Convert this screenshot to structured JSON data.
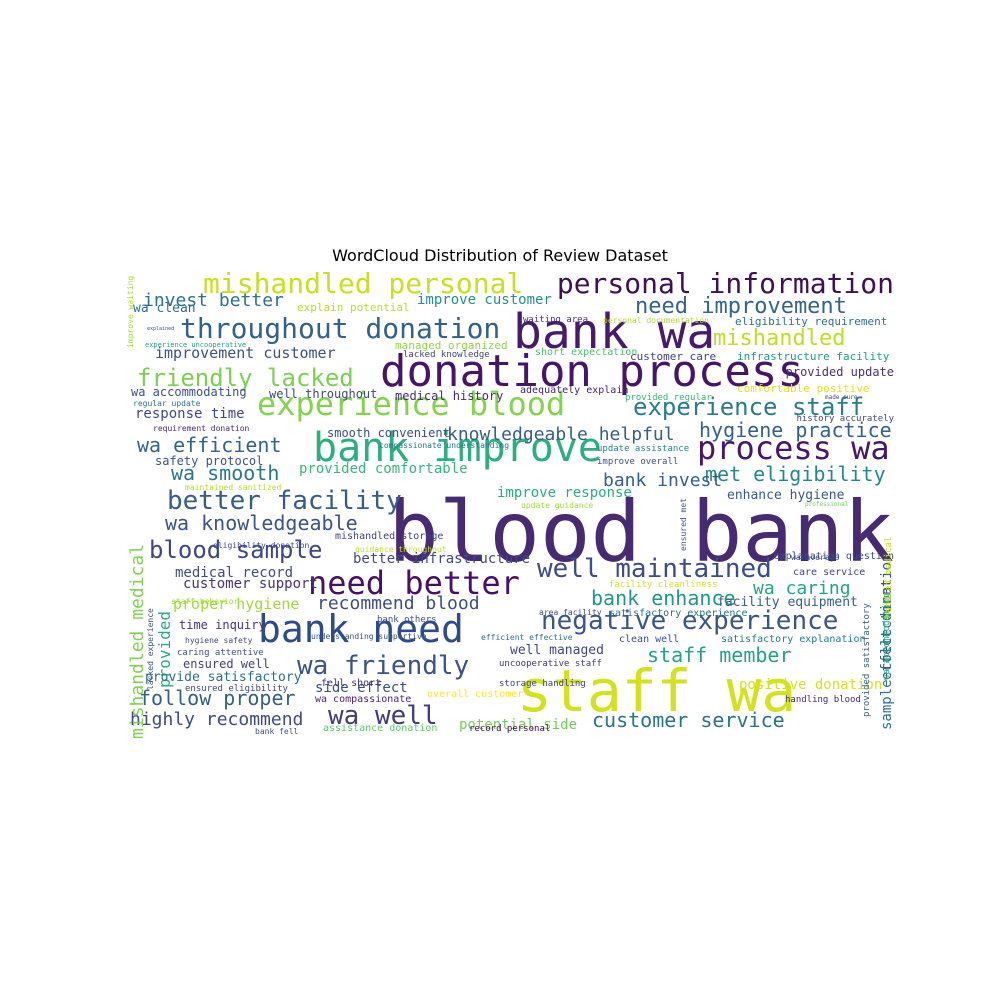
{
  "title": "WordCloud Distribution of Review Dataset",
  "colors": {
    "background": "#ffffff",
    "palette": "viridis"
  },
  "words": [
    {
      "text": "blood bank",
      "color": "#462a72"
    },
    {
      "text": "staff wa",
      "color": "#d2e21b"
    },
    {
      "text": "donation process",
      "color": "#46146a"
    },
    {
      "text": "bank wa",
      "color": "#461a6c"
    },
    {
      "text": "bank improve",
      "color": "#2ab07f"
    },
    {
      "text": "bank need",
      "color": "#2d4a89"
    },
    {
      "text": "experience blood",
      "color": "#84d44b"
    },
    {
      "text": "mishandled personal",
      "color": "#c8e020"
    },
    {
      "text": "personal information",
      "color": "#3f0f58"
    },
    {
      "text": "throughout donation",
      "color": "#32618c"
    },
    {
      "text": "process wa",
      "color": "#46166e"
    },
    {
      "text": "need better",
      "color": "#46106a"
    },
    {
      "text": "friendly lacked",
      "color": "#7ad151"
    },
    {
      "text": "better facility",
      "color": "#365c8d"
    },
    {
      "text": "wa friendly",
      "color": "#3b528b"
    },
    {
      "text": "well maintained",
      "color": "#3b4b8c"
    },
    {
      "text": "negative experience",
      "color": "#3a548c"
    },
    {
      "text": "experience staff",
      "color": "#297b8e"
    },
    {
      "text": "wa well",
      "color": "#423a84"
    },
    {
      "text": "blood sample",
      "color": "#3f4788"
    },
    {
      "text": "need improvement",
      "color": "#32648e"
    },
    {
      "text": "mishandled",
      "color": "#bddf26"
    },
    {
      "text": "knowledgeable helpful",
      "color": "#365d8c"
    },
    {
      "text": "hygiene practice",
      "color": "#355f8d"
    },
    {
      "text": "met eligibility",
      "color": "#23898e"
    },
    {
      "text": "wa knowledgeable",
      "color": "#3a538b"
    },
    {
      "text": "follow proper",
      "color": "#355e8d"
    },
    {
      "text": "customer service",
      "color": "#2c738e"
    },
    {
      "text": "staff member",
      "color": "#20a486"
    },
    {
      "text": "bank enhance",
      "color": "#1f988b"
    },
    {
      "text": "wa efficient",
      "color": "#33638d"
    },
    {
      "text": "recommend blood",
      "color": "#3d4d8a"
    },
    {
      "text": "bank invest",
      "color": "#33608d"
    },
    {
      "text": "wa smooth",
      "color": "#2a788e"
    },
    {
      "text": "wa caring",
      "color": "#22a785"
    },
    {
      "text": "highly recommend",
      "color": "#3e4a89"
    },
    {
      "text": "invest better",
      "color": "#2d718e"
    },
    {
      "text": "improvement customer",
      "color": "#3b528b"
    },
    {
      "text": "improve customer",
      "color": "#21918c"
    },
    {
      "text": "provided comfortable",
      "color": "#35b779"
    },
    {
      "text": "proper hygiene",
      "color": "#a0da39"
    },
    {
      "text": "response time",
      "color": "#3f4889"
    },
    {
      "text": "better infrastructure",
      "color": "#3e4989"
    },
    {
      "text": "improve response",
      "color": "#29af7f"
    },
    {
      "text": "medical record",
      "color": "#3e4c8a"
    },
    {
      "text": "customer support",
      "color": "#463480"
    },
    {
      "text": "mishandled medical",
      "color": "#7fd34e"
    },
    {
      "text": "provided",
      "color": "#26ad81"
    },
    {
      "text": "provided update",
      "color": "#46307e"
    },
    {
      "text": "provide satisfactory",
      "color": "#2e6e8e"
    },
    {
      "text": "potential side",
      "color": "#73d056"
    },
    {
      "text": "side effect",
      "color": "#3c4f8a"
    },
    {
      "text": "well managed",
      "color": "#3f4788"
    },
    {
      "text": "enhance hygiene",
      "color": "#38588c"
    },
    {
      "text": "facility equipment",
      "color": "#35608d"
    },
    {
      "text": "ensured well",
      "color": "#423f85"
    },
    {
      "text": "time inquiry",
      "color": "#46327e"
    },
    {
      "text": "wa accommodating",
      "color": "#3c508b"
    },
    {
      "text": "well throughout",
      "color": "#3f4788"
    },
    {
      "text": "medical history",
      "color": "#472d7b"
    },
    {
      "text": "smooth convenient",
      "color": "#3e4a89"
    },
    {
      "text": "safety protocol",
      "color": "#3b528b"
    },
    {
      "text": "wa clean",
      "color": "#2c728e"
    },
    {
      "text": "explain potential",
      "color": "#b5de2b"
    },
    {
      "text": "managed organized",
      "color": "#90d743"
    },
    {
      "text": "customer care",
      "color": "#424086"
    },
    {
      "text": "infrastructure facility",
      "color": "#1e9c89"
    },
    {
      "text": "comfortable positive",
      "color": "#e2e418"
    },
    {
      "text": "positive donation",
      "color": "#d8e219"
    },
    {
      "text": "effect donation",
      "color": "#3b528b"
    },
    {
      "text": "sample collection",
      "color": "#2e6f8e"
    },
    {
      "text": "eligibility requirement",
      "color": "#2c738e"
    },
    {
      "text": "adequately explain",
      "color": "#482475"
    },
    {
      "text": "short expectation",
      "color": "#4ac16d"
    },
    {
      "text": "lacked knowledge",
      "color": "#414487"
    },
    {
      "text": "waiting area",
      "color": "#46307e"
    },
    {
      "text": "update assistance",
      "color": "#26828e"
    },
    {
      "text": "improve overall",
      "color": "#3d4e8a"
    },
    {
      "text": "storage handling",
      "color": "#424086"
    },
    {
      "text": "clean well",
      "color": "#3b528b"
    },
    {
      "text": "satisfactory explanation",
      "color": "#2a788e"
    },
    {
      "text": "satisfactory experience",
      "color": "#2d718e"
    },
    {
      "text": "explanation question",
      "color": "#3e4c8a"
    },
    {
      "text": "care service",
      "color": "#404588"
    },
    {
      "text": "handling blood",
      "color": "#482878"
    },
    {
      "text": "record personal",
      "color": "#440154"
    },
    {
      "text": "overall customer",
      "color": "#fde725"
    },
    {
      "text": "assistance donation",
      "color": "#5ec962"
    },
    {
      "text": "uncooperative staff",
      "color": "#453781"
    },
    {
      "text": "wa compassionate",
      "color": "#481f70"
    },
    {
      "text": "fell short",
      "color": "#472f7d"
    },
    {
      "text": "ensured eligibility",
      "color": "#3e4a89"
    },
    {
      "text": "caring attentive",
      "color": "#3b518b"
    },
    {
      "text": "hygiene safety",
      "color": "#3e4a89"
    },
    {
      "text": "bank others",
      "color": "#3b528b"
    },
    {
      "text": "mishandled storage",
      "color": "#414487"
    },
    {
      "text": "guidance throughout",
      "color": "#c2df23"
    },
    {
      "text": "maintained sanitized",
      "color": "#b8de29"
    },
    {
      "text": "eligibility donation",
      "color": "#3e4a89"
    },
    {
      "text": "staff behavior",
      "color": "#a5db36"
    },
    {
      "text": "lacked experience",
      "color": "#3b528b"
    },
    {
      "text": "requirement donation",
      "color": "#482878"
    },
    {
      "text": "regular update",
      "color": "#2c728e"
    },
    {
      "text": "experience uncooperative",
      "color": "#20a486"
    },
    {
      "text": "improve waiting",
      "color": "#a8db34"
    },
    {
      "text": "personal documentation",
      "color": "#addc30"
    },
    {
      "text": "provided regular",
      "color": "#35b779"
    },
    {
      "text": "history accurately",
      "color": "#3e4a89"
    },
    {
      "text": "ensured met",
      "color": "#3b528b"
    },
    {
      "text": "provided satisfactory",
      "color": "#33638d"
    },
    {
      "text": "wa accommodating",
      "color": "#2ab07f"
    },
    {
      "text": "handled medical",
      "color": "#c5e021"
    },
    {
      "text": "efficient effective",
      "color": "#2c728e"
    },
    {
      "text": "area facility",
      "color": "#3e4a89"
    },
    {
      "text": "facility cleanliness",
      "color": "#d8e219"
    },
    {
      "text": "wa average",
      "color": "#404688"
    },
    {
      "text": "understanding supportive",
      "color": "#3b528b"
    },
    {
      "text": "compassionate understanding",
      "color": "#2c728e"
    },
    {
      "text": "update guidance",
      "color": "#a0da39"
    },
    {
      "text": "bank fell",
      "color": "#3b528b"
    },
    {
      "text": "made sure",
      "color": "#3e4a89"
    },
    {
      "text": "professional",
      "color": "#6ece58"
    },
    {
      "text": "explained",
      "color": "#3b528b"
    }
  ]
}
